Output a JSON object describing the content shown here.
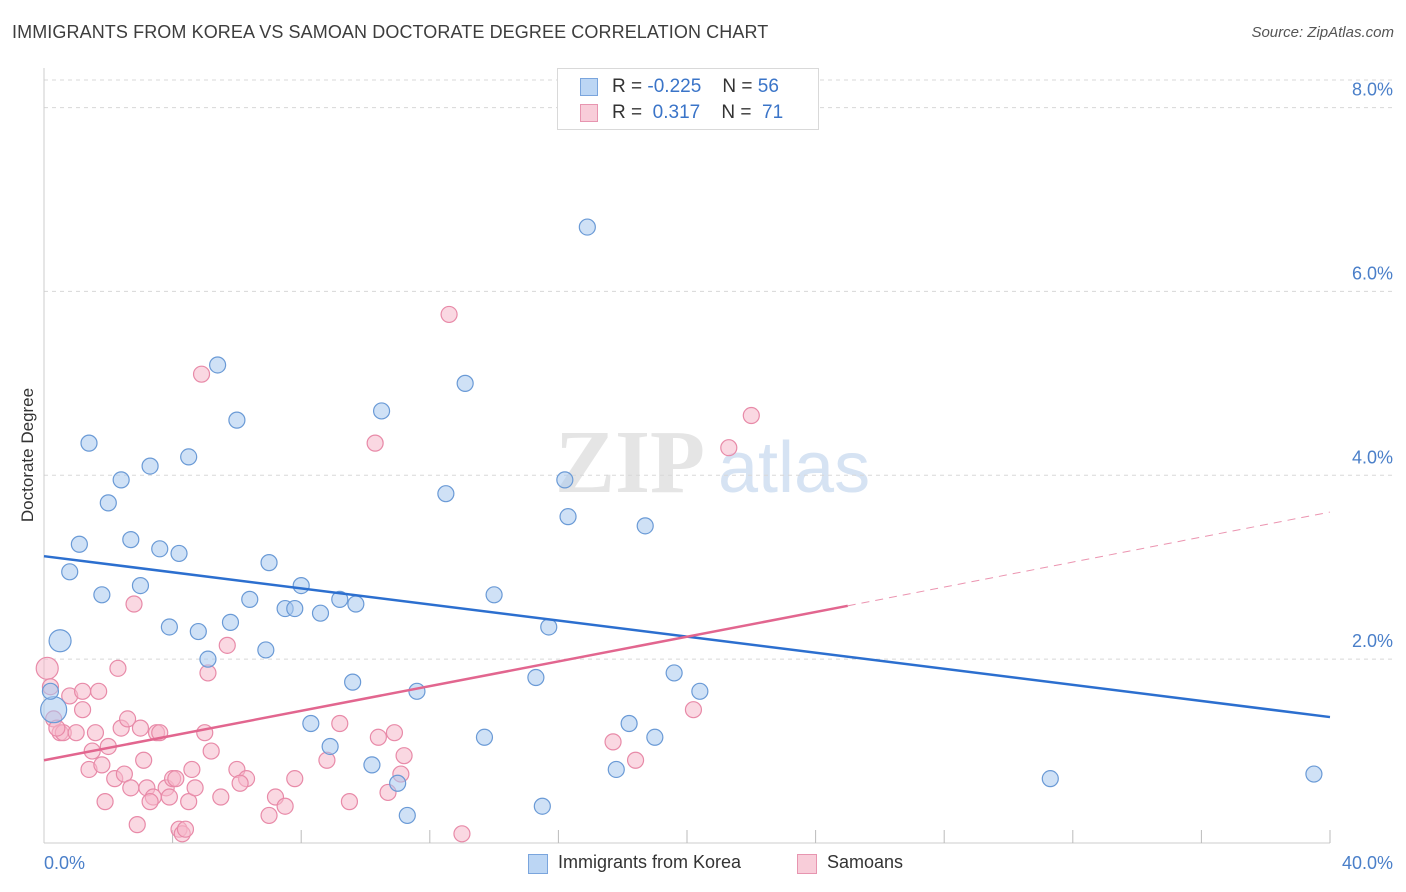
{
  "title": "IMMIGRANTS FROM KOREA VS SAMOAN DOCTORATE DEGREE CORRELATION CHART",
  "source": "Source: ZipAtlas.com",
  "watermark": {
    "zip": "ZIP",
    "atlas": "atlas"
  },
  "legend_top": {
    "korea": {
      "r_label": "R =",
      "r_value": "-0.225",
      "n_label": "N =",
      "n_value": "56"
    },
    "samoan": {
      "r_label": "R =",
      "r_value": "0.317",
      "n_label": "N =",
      "n_value": "71"
    }
  },
  "colors": {
    "korea_fill": "#a8c8ef",
    "korea_stroke": "#6a9ad6",
    "korea_line": "#2c6fcf",
    "samoan_fill": "#f5b8cb",
    "samoan_stroke": "#e88aa8",
    "samoan_line": "#e2668f",
    "tick_label": "#4a7fc9",
    "grid": "#d8d8d8"
  },
  "chart_data": {
    "type": "scatter",
    "xlabel": "",
    "ylabel": "Doctorate Degree",
    "xlim": [
      0,
      40
    ],
    "ylim": [
      0,
      8.3
    ],
    "x_tick_labels": [
      {
        "value": 0,
        "label": "0.0%"
      },
      {
        "value": 40,
        "label": "40.0%"
      }
    ],
    "y_ticks": [
      {
        "value": 2,
        "label": "2.0%"
      },
      {
        "value": 4,
        "label": "4.0%"
      },
      {
        "value": 6,
        "label": "6.0%"
      },
      {
        "value": 8,
        "label": "8.0%"
      }
    ],
    "grid": "horizontal dashed",
    "legend": "bottom-center",
    "series": [
      {
        "name": "Immigrants from Korea",
        "points": [
          [
            0.3,
            1.45
          ],
          [
            0.5,
            2.2
          ],
          [
            0.8,
            2.95
          ],
          [
            1.1,
            3.25
          ],
          [
            1.4,
            4.35
          ],
          [
            1.8,
            2.7
          ],
          [
            2.0,
            3.7
          ],
          [
            2.4,
            3.95
          ],
          [
            2.7,
            3.3
          ],
          [
            3.0,
            2.8
          ],
          [
            3.3,
            4.1
          ],
          [
            3.6,
            3.2
          ],
          [
            3.9,
            2.35
          ],
          [
            4.2,
            3.15
          ],
          [
            4.5,
            4.2
          ],
          [
            4.8,
            2.3
          ],
          [
            5.1,
            2.0
          ],
          [
            5.4,
            5.2
          ],
          [
            5.8,
            2.4
          ],
          [
            6.0,
            4.6
          ],
          [
            6.4,
            2.65
          ],
          [
            6.9,
            2.1
          ],
          [
            7.0,
            3.05
          ],
          [
            7.5,
            2.55
          ],
          [
            7.8,
            2.55
          ],
          [
            8.0,
            2.8
          ],
          [
            8.3,
            1.3
          ],
          [
            8.6,
            2.5
          ],
          [
            8.9,
            1.05
          ],
          [
            9.2,
            2.65
          ],
          [
            9.6,
            1.75
          ],
          [
            9.7,
            2.6
          ],
          [
            10.2,
            0.85
          ],
          [
            10.5,
            4.7
          ],
          [
            11.0,
            0.65
          ],
          [
            11.3,
            0.3
          ],
          [
            11.6,
            1.65
          ],
          [
            12.5,
            3.8
          ],
          [
            13.1,
            5.0
          ],
          [
            13.7,
            1.15
          ],
          [
            14.0,
            2.7
          ],
          [
            15.3,
            1.8
          ],
          [
            15.5,
            0.4
          ],
          [
            15.7,
            2.35
          ],
          [
            16.2,
            3.95
          ],
          [
            16.3,
            3.55
          ],
          [
            16.9,
            6.7
          ],
          [
            17.8,
            0.8
          ],
          [
            18.2,
            1.3
          ],
          [
            18.7,
            3.45
          ],
          [
            19.0,
            1.15
          ],
          [
            19.6,
            1.85
          ],
          [
            20.4,
            1.65
          ],
          [
            31.3,
            0.7
          ],
          [
            39.5,
            0.75
          ],
          [
            0.2,
            1.65
          ]
        ]
      },
      {
        "name": "Samoans",
        "points": [
          [
            0.1,
            1.9
          ],
          [
            0.2,
            1.7
          ],
          [
            0.3,
            1.35
          ],
          [
            0.5,
            1.2
          ],
          [
            0.6,
            1.2
          ],
          [
            0.8,
            1.6
          ],
          [
            1.0,
            1.2
          ],
          [
            1.2,
            1.65
          ],
          [
            1.2,
            1.45
          ],
          [
            1.4,
            0.8
          ],
          [
            1.5,
            1.0
          ],
          [
            1.7,
            1.65
          ],
          [
            1.8,
            0.85
          ],
          [
            1.9,
            0.45
          ],
          [
            2.0,
            1.05
          ],
          [
            2.2,
            0.7
          ],
          [
            2.3,
            1.9
          ],
          [
            2.4,
            1.25
          ],
          [
            2.5,
            0.75
          ],
          [
            2.6,
            1.35
          ],
          [
            2.7,
            0.6
          ],
          [
            2.8,
            2.6
          ],
          [
            2.9,
            0.2
          ],
          [
            3.0,
            1.25
          ],
          [
            3.1,
            0.9
          ],
          [
            3.2,
            0.6
          ],
          [
            3.4,
            0.5
          ],
          [
            3.5,
            1.2
          ],
          [
            3.6,
            1.2
          ],
          [
            3.8,
            0.6
          ],
          [
            3.9,
            0.5
          ],
          [
            4.0,
            0.7
          ],
          [
            4.1,
            0.7
          ],
          [
            4.2,
            0.15
          ],
          [
            4.3,
            0.1
          ],
          [
            4.4,
            0.15
          ],
          [
            4.5,
            0.45
          ],
          [
            4.6,
            0.8
          ],
          [
            4.9,
            5.1
          ],
          [
            5.0,
            1.2
          ],
          [
            5.1,
            1.85
          ],
          [
            5.2,
            1.0
          ],
          [
            5.5,
            0.5
          ],
          [
            5.7,
            2.15
          ],
          [
            6.0,
            0.8
          ],
          [
            6.3,
            0.7
          ],
          [
            7.0,
            0.3
          ],
          [
            7.2,
            0.5
          ],
          [
            7.5,
            0.4
          ],
          [
            7.8,
            0.7
          ],
          [
            8.8,
            0.9
          ],
          [
            9.2,
            1.3
          ],
          [
            10.3,
            4.35
          ],
          [
            10.4,
            1.15
          ],
          [
            10.7,
            0.55
          ],
          [
            10.9,
            1.2
          ],
          [
            11.1,
            0.75
          ],
          [
            11.2,
            0.95
          ],
          [
            12.6,
            5.75
          ],
          [
            13.0,
            0.1
          ],
          [
            17.7,
            1.1
          ],
          [
            18.4,
            0.9
          ],
          [
            20.2,
            1.45
          ],
          [
            21.3,
            4.3
          ],
          [
            22.0,
            4.65
          ],
          [
            0.4,
            1.25
          ],
          [
            1.6,
            1.2
          ],
          [
            3.3,
            0.45
          ],
          [
            4.7,
            0.6
          ],
          [
            6.1,
            0.65
          ],
          [
            9.5,
            0.45
          ]
        ]
      }
    ],
    "trendlines": [
      {
        "series": "Immigrants from Korea",
        "x": [
          0,
          40
        ],
        "y": [
          3.12,
          1.37
        ],
        "style": "solid"
      },
      {
        "series": "Samoans",
        "x": [
          0,
          25
        ],
        "y": [
          0.9,
          2.58
        ],
        "style": "solid"
      },
      {
        "series": "Samoans",
        "x": [
          25,
          40
        ],
        "y": [
          2.58,
          3.6
        ],
        "style": "dashed"
      }
    ]
  }
}
